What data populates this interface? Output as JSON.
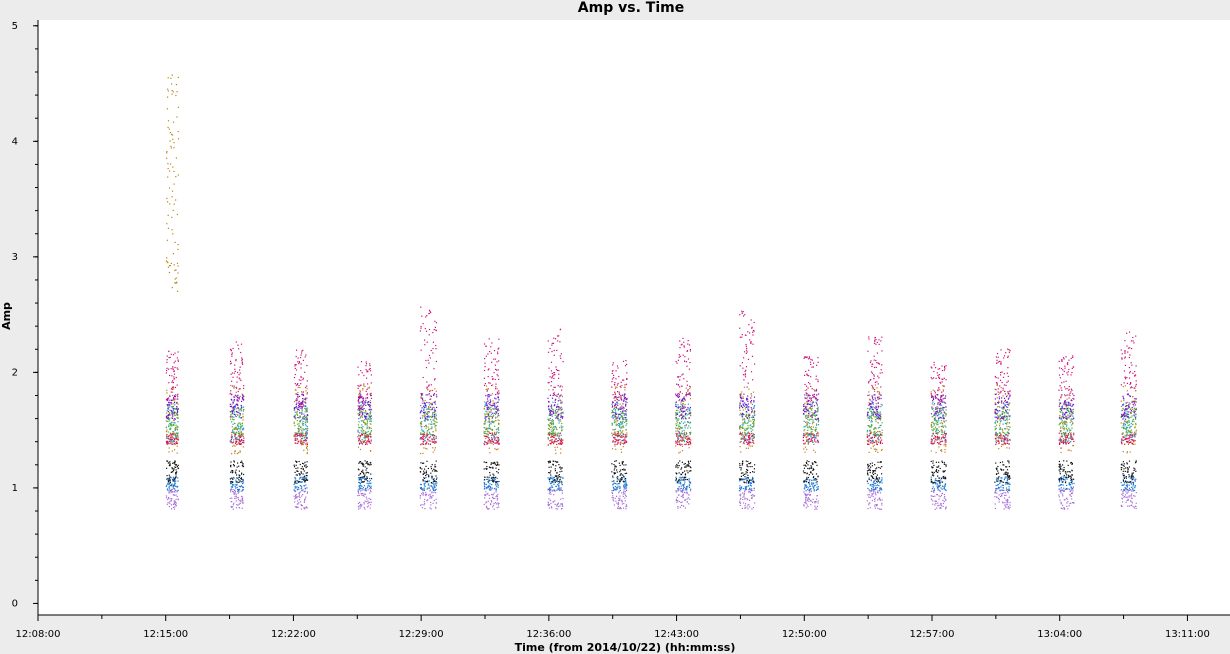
{
  "chart_data": {
    "type": "scatter",
    "title": "Amp vs. Time",
    "xlabel": "Time (from 2014/10/22) (hh:mm:ss)",
    "ylabel": "Amp",
    "xlim": [
      "12:08:00",
      "13:13:20"
    ],
    "ylim": [
      -0.1,
      5.05
    ],
    "x_ticks": [
      "12:08:00",
      "12:15:00",
      "12:22:00",
      "12:29:00",
      "12:36:00",
      "12:43:00",
      "12:50:00",
      "12:57:00",
      "13:04:00",
      "13:11:00"
    ],
    "y_ticks": [
      0,
      1,
      2,
      3,
      4,
      5
    ],
    "grid": false,
    "scans": [
      {
        "start": "12:15:00",
        "end": "12:15:40",
        "upper_band": [
          1.75,
          2.2
        ]
      },
      {
        "start": "12:18:30",
        "end": "12:19:15",
        "upper_band": [
          1.75,
          2.27
        ]
      },
      {
        "start": "12:22:00",
        "end": "12:22:45",
        "upper_band": [
          1.7,
          2.2
        ]
      },
      {
        "start": "12:25:30",
        "end": "12:26:15",
        "upper_band": [
          1.7,
          2.1
        ]
      },
      {
        "start": "12:28:55",
        "end": "12:29:50",
        "upper_band": [
          1.8,
          2.57
        ]
      },
      {
        "start": "12:32:25",
        "end": "12:33:15",
        "upper_band": [
          1.8,
          2.3
        ]
      },
      {
        "start": "12:35:55",
        "end": "12:36:45",
        "upper_band": [
          1.8,
          2.4
        ]
      },
      {
        "start": "12:39:25",
        "end": "12:40:15",
        "upper_band": [
          1.7,
          2.12
        ]
      },
      {
        "start": "12:42:55",
        "end": "12:43:45",
        "upper_band": [
          1.8,
          2.3
        ]
      },
      {
        "start": "12:46:25",
        "end": "12:47:15",
        "upper_band": [
          1.85,
          2.55
        ]
      },
      {
        "start": "12:49:55",
        "end": "12:50:45",
        "upper_band": [
          1.75,
          2.15
        ]
      },
      {
        "start": "12:53:25",
        "end": "12:54:15",
        "upper_band": [
          1.85,
          2.32
        ]
      },
      {
        "start": "12:56:55",
        "end": "12:57:45",
        "upper_band": [
          1.75,
          2.1
        ]
      },
      {
        "start": "13:00:25",
        "end": "13:01:15",
        "upper_band": [
          1.8,
          2.22
        ]
      },
      {
        "start": "13:03:55",
        "end": "13:04:45",
        "upper_band": [
          1.75,
          2.15
        ]
      },
      {
        "start": "13:07:20",
        "end": "13:08:10",
        "upper_band": [
          1.85,
          2.37
        ]
      }
    ],
    "bands": [
      {
        "color": "#a96fd8",
        "range": [
          0.82,
          1.0
        ]
      },
      {
        "color": "#1e78d2",
        "range": [
          0.98,
          1.1
        ]
      },
      {
        "color": "#111111",
        "range": [
          1.05,
          1.24
        ]
      },
      {
        "color": "#d01050",
        "range": [
          1.38,
          1.48
        ]
      },
      {
        "color": "#20a0d0",
        "range": [
          1.4,
          1.75
        ]
      },
      {
        "color": "#50b030",
        "range": [
          1.45,
          1.7
        ]
      },
      {
        "color": "#c08020",
        "range": [
          1.3,
          1.9
        ]
      },
      {
        "color": "#7010d0",
        "range": [
          1.6,
          1.82
        ]
      },
      {
        "color": "#d0107a",
        "range": [
          1.8,
          2.2
        ]
      }
    ],
    "outlier_scan": {
      "start": "12:15:00",
      "end": "12:15:40",
      "color": "#b8860b",
      "range": [
        2.7,
        4.62
      ]
    }
  }
}
